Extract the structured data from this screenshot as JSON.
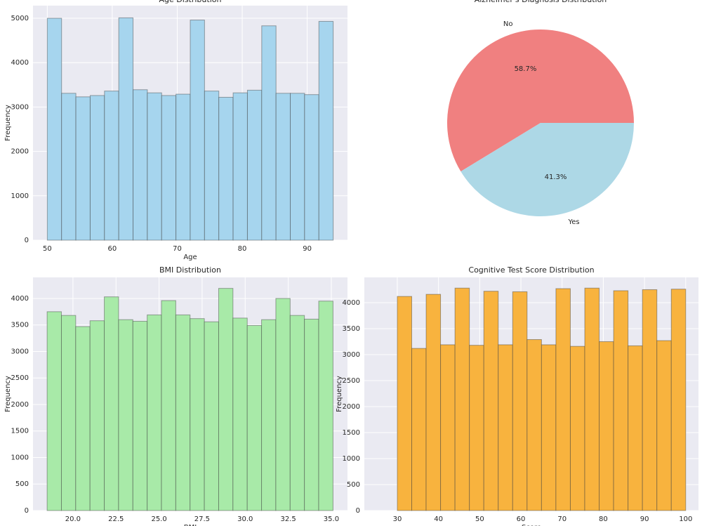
{
  "chart_data": [
    {
      "type": "histogram",
      "title": "Age Distribution",
      "xlabel": "Age",
      "ylabel": "Frequency",
      "bins": [
        50,
        52.2,
        54.4,
        56.6,
        58.8,
        61,
        63.2,
        65.4,
        67.6,
        69.8,
        72,
        74.2,
        76.4,
        78.6,
        80.8,
        83,
        85.2,
        87.4,
        89.6,
        91.8,
        94
      ],
      "values": [
        5000,
        3310,
        3230,
        3260,
        3360,
        5010,
        3390,
        3320,
        3260,
        3290,
        4960,
        3360,
        3220,
        3320,
        3380,
        4830,
        3310,
        3310,
        3280,
        4930
      ],
      "color": "#a6d5ee",
      "xlim": [
        47.8,
        96.2
      ],
      "xticks": [
        50,
        60,
        70,
        80,
        90
      ],
      "ylim": [
        0,
        5285
      ],
      "yticks": [
        0,
        1000,
        2000,
        3000,
        4000,
        5000
      ],
      "grid": true
    },
    {
      "type": "pie",
      "title": "Alzheimer's Diagnosis Distribution",
      "categories": [
        "No",
        "Yes"
      ],
      "values": [
        58.7,
        41.3
      ],
      "value_labels": [
        "58.7%",
        "41.3%"
      ],
      "colors": [
        "#f08080",
        "#add8e6"
      ]
    },
    {
      "type": "histogram",
      "title": "BMI Distribution",
      "xlabel": "BMI",
      "ylabel": "Frequency",
      "bins": [
        18.5,
        19.33,
        20.16,
        20.99,
        21.82,
        22.65,
        23.48,
        24.31,
        25.14,
        25.97,
        26.8,
        27.63,
        28.46,
        29.29,
        30.12,
        30.95,
        31.78,
        32.61,
        33.44,
        34.27,
        35.1
      ],
      "values": [
        3750,
        3680,
        3470,
        3580,
        4030,
        3600,
        3570,
        3690,
        3960,
        3690,
        3620,
        3560,
        4190,
        3630,
        3490,
        3600,
        4000,
        3680,
        3610,
        3950
      ],
      "color": "#a8eaa8",
      "xlim": [
        17.68,
        35.94
      ],
      "xticks": [
        {
          "value": 20,
          "label": "20.0"
        },
        {
          "value": 22.5,
          "label": "22.5"
        },
        {
          "value": 25,
          "label": "25.0"
        },
        {
          "value": 27.5,
          "label": "27.5"
        },
        {
          "value": 30,
          "label": "30.0"
        },
        {
          "value": 32.5,
          "label": "32.5"
        },
        {
          "value": 35,
          "label": "35.0"
        }
      ],
      "ylim": [
        0,
        4397
      ],
      "yticks": [
        0,
        500,
        1000,
        1500,
        2000,
        2500,
        3000,
        3500,
        4000
      ],
      "grid": true
    },
    {
      "type": "histogram",
      "title": "Cognitive Test Score Distribution",
      "xlabel": "Score",
      "ylabel": "Frequency",
      "bins": [
        30,
        33.5,
        37,
        40.5,
        44,
        47.5,
        51,
        54.5,
        58,
        61.5,
        65,
        68.5,
        72,
        75.5,
        79,
        82.5,
        86,
        89.5,
        93,
        96.5,
        100
      ],
      "values": [
        4120,
        3120,
        4160,
        3190,
        4280,
        3180,
        4220,
        3190,
        4210,
        3290,
        3190,
        4270,
        3160,
        4280,
        3250,
        4230,
        3170,
        4250,
        3270,
        4260
      ],
      "color": "#f8b33e",
      "xlim": [
        22,
        103.1
      ],
      "xticks": [
        30,
        40,
        50,
        60,
        70,
        80,
        90,
        100
      ],
      "ylim": [
        0,
        4486
      ],
      "yticks": [
        0,
        500,
        1000,
        1500,
        2000,
        2500,
        3000,
        3500,
        4000
      ],
      "grid": true
    }
  ]
}
